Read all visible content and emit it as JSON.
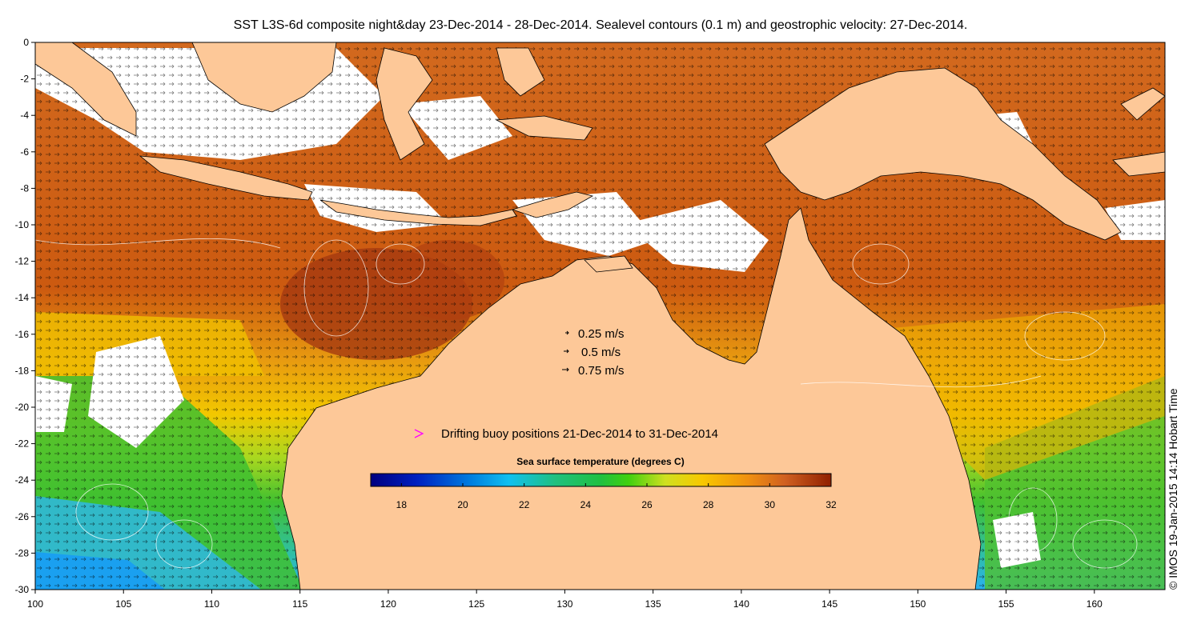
{
  "title": "SST L3S-6d composite night&day 23-Dec-2014 - 28-Dec-2014. Sealevel contours (0.1 m) and geostrophic velocity: 27-Dec-2014.",
  "credit": "© IMOS 19-Jan-2015 14:14 Hobart Time",
  "axes": {
    "x_ticks": [
      "100",
      "105",
      "110",
      "115",
      "120",
      "125",
      "130",
      "135",
      "140",
      "145",
      "150",
      "155",
      "160"
    ],
    "y_ticks": [
      "0",
      "-2",
      "-4",
      "-6",
      "-8",
      "-10",
      "-12",
      "-14",
      "-16",
      "-18",
      "-20",
      "-22",
      "-24",
      "-26",
      "-28",
      "-30"
    ],
    "lon_range": [
      100,
      164
    ],
    "lat_range": [
      -30,
      0
    ]
  },
  "velocity_legend": [
    {
      "label": "0.25 m/s",
      "speed": 0.25
    },
    {
      "label": "0.5 m/s",
      "speed": 0.5
    },
    {
      "label": "0.75 m/s",
      "speed": 0.75
    }
  ],
  "buoy_legend": {
    "label": "Drifting buoy positions 21-Dec-2014 to 31-Dec-2014",
    "color": "#ff00ff"
  },
  "colorbar": {
    "title": "Sea surface temperature (degrees C)",
    "ticks": [
      "18",
      "20",
      "22",
      "24",
      "26",
      "28",
      "30",
      "32"
    ],
    "range": [
      17,
      32
    ]
  },
  "colors": {
    "land": "#fdc898",
    "ocean_warm": "#d2691e",
    "ocean_hot": "#a52a0a",
    "ocean_mid": "#f0c000",
    "ocean_cool": "#40c030",
    "ocean_cold": "#2ab0f0",
    "cloud": "#ffffff",
    "contour": "#ffffff"
  }
}
